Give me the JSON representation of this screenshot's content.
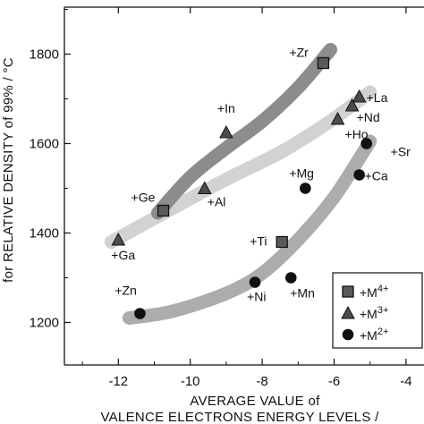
{
  "chart_data": {
    "type": "scatter",
    "xlabel_lines": [
      "AVERAGE VALUE of",
      "VALENCE ELECTRONS ENERGY LEVELS /"
    ],
    "ylabel": "for RELATIVE DENSITY of 99% / °C",
    "xlim": [
      -13.5,
      -3.5
    ],
    "ylim": [
      1105,
      1905
    ],
    "x_ticks": [
      -12,
      -10,
      -8,
      -6,
      -4
    ],
    "y_ticks": [
      1200,
      1400,
      1600,
      1800
    ],
    "x_tick_labels": [
      "-12",
      "-10",
      "-8",
      "-6",
      "-4"
    ],
    "y_tick_labels": [
      "1200",
      "1400",
      "1600",
      "1800"
    ],
    "grid": false,
    "legend_position": "bottom-right",
    "legend": [
      {
        "marker": "square",
        "label": "+M",
        "sup": "4+"
      },
      {
        "marker": "triangle",
        "label": "+M",
        "sup": "3+"
      },
      {
        "marker": "circle",
        "label": "+M",
        "sup": "2+"
      }
    ],
    "series": [
      {
        "marker": "square",
        "trend_color": "#8c8c8c",
        "trend": [
          [
            -10.9,
            1445
          ],
          [
            -10.0,
            1525
          ],
          [
            -9.0,
            1590
          ],
          [
            -8.0,
            1650
          ],
          [
            -7.0,
            1725
          ],
          [
            -6.1,
            1810
          ]
        ],
        "points": [
          {
            "label": "+Ge",
            "x": -10.75,
            "y": 1450
          },
          {
            "label": "+Ti",
            "x": -7.45,
            "y": 1380
          },
          {
            "label": "+Zr",
            "x": -6.3,
            "y": 1780
          }
        ]
      },
      {
        "marker": "triangle",
        "trend_color": "#d2d2d2",
        "trend": [
          [
            -12.2,
            1380
          ],
          [
            -10.5,
            1455
          ],
          [
            -9.0,
            1520
          ],
          [
            -7.5,
            1580
          ],
          [
            -6.2,
            1645
          ],
          [
            -5.0,
            1715
          ]
        ],
        "points": [
          {
            "label": "+Ga",
            "x": -12.0,
            "y": 1385
          },
          {
            "label": "+Al",
            "x": -9.6,
            "y": 1500
          },
          {
            "label": "+In",
            "x": -9.0,
            "y": 1625
          },
          {
            "label": "+Ho",
            "x": -5.9,
            "y": 1655
          },
          {
            "label": "+Nd",
            "x": -5.5,
            "y": 1685
          },
          {
            "label": "+La",
            "x": -5.3,
            "y": 1705
          }
        ]
      },
      {
        "marker": "circle",
        "trend_color": "#acacac",
        "trend": [
          [
            -11.7,
            1210
          ],
          [
            -10.5,
            1225
          ],
          [
            -9.0,
            1265
          ],
          [
            -8.0,
            1310
          ],
          [
            -7.0,
            1385
          ],
          [
            -6.0,
            1480
          ],
          [
            -5.0,
            1605
          ]
        ],
        "points": [
          {
            "label": "+Zn",
            "x": -11.4,
            "y": 1220
          },
          {
            "label": "+Ni",
            "x": -8.2,
            "y": 1290
          },
          {
            "label": "+Mn",
            "x": -7.2,
            "y": 1300
          },
          {
            "label": "+Mg",
            "x": -6.8,
            "y": 1500
          },
          {
            "label": "+Ca",
            "x": -5.3,
            "y": 1530
          },
          {
            "label": "+Sr",
            "x": -5.1,
            "y": 1600
          }
        ]
      }
    ]
  }
}
